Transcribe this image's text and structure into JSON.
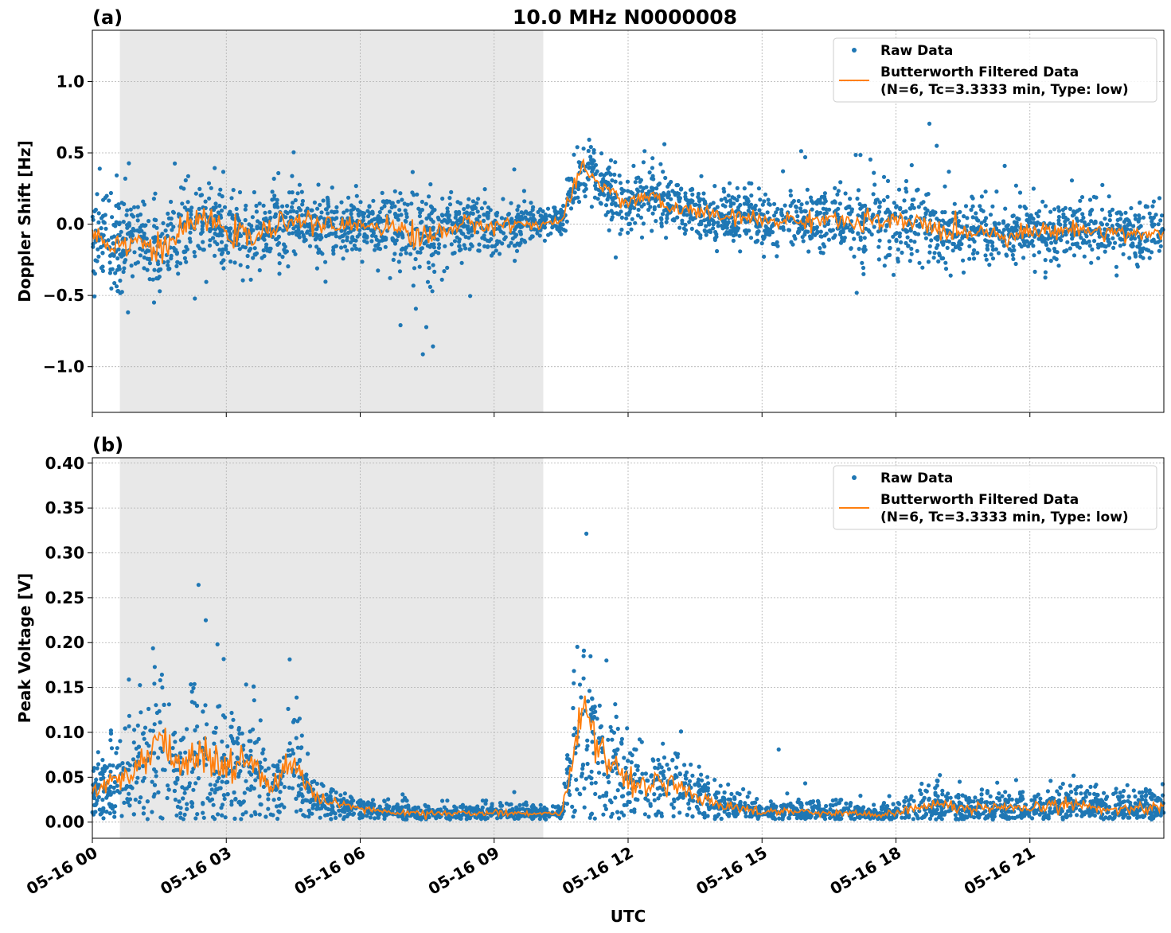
{
  "chart_data": {
    "type": "scatter",
    "title": "10.0 MHz N0000008",
    "xlabel": "UTC",
    "x_ticks": [
      "05-16 00",
      "05-16 03",
      "05-16 06",
      "05-16 09",
      "05-16 12",
      "05-16 15",
      "05-16 18",
      "05-16 21"
    ],
    "xlim": [
      "05-16 00:00",
      "05-17 00:00"
    ],
    "shaded_interval": [
      "05-16 00:37",
      "05-16 10:06"
    ],
    "colors": {
      "raw": "#1f77b4",
      "filtered": "#ff7f0e",
      "shade": "#e8e8e8"
    },
    "grid": true,
    "legend_placement": "top-right",
    "legend": [
      "Raw Data",
      "Butterworth Filtered Data\n(N=6, Tc=3.3333 min, Type: low)"
    ],
    "legend_line1": "Butterworth Filtered Data",
    "legend_line2": "(N=6, Tc=3.3333 min, Type: low)",
    "time": [
      "00:00",
      "00:30",
      "01:00",
      "01:30",
      "02:00",
      "02:30",
      "03:00",
      "03:30",
      "04:00",
      "04:30",
      "05:00",
      "05:30",
      "06:00",
      "06:30",
      "07:00",
      "07:30",
      "08:00",
      "08:30",
      "09:00",
      "09:30",
      "10:00",
      "10:30",
      "11:00",
      "11:30",
      "12:00",
      "12:30",
      "13:00",
      "13:30",
      "14:00",
      "14:30",
      "15:00",
      "15:30",
      "16:00",
      "16:30",
      "17:00",
      "17:30",
      "18:00",
      "18:30",
      "19:00",
      "19:30",
      "20:00",
      "20:30",
      "21:00",
      "21:30",
      "22:00",
      "22:30",
      "23:00",
      "23:30",
      "24:00"
    ],
    "panels": [
      {
        "label": "(a)",
        "ylabel": "Doppler Shift [Hz]",
        "ylim": [
          -1.32,
          1.36
        ],
        "y_ticks": [
          -1.0,
          -0.5,
          0.0,
          0.5,
          1.0
        ],
        "y_tick_labels": [
          "−1.0",
          "−0.5",
          "0.0",
          "0.5",
          "1.0"
        ],
        "filtered": [
          -0.05,
          -0.15,
          -0.1,
          -0.2,
          -0.05,
          0.05,
          -0.05,
          -0.1,
          -0.05,
          0.05,
          0.0,
          -0.02,
          0.0,
          -0.01,
          -0.05,
          -0.1,
          -0.02,
          0.0,
          -0.01,
          0.0,
          0.0,
          0.02,
          0.4,
          0.25,
          0.15,
          0.2,
          0.1,
          0.1,
          0.05,
          0.05,
          0.02,
          0.03,
          0.02,
          0.05,
          0.0,
          0.02,
          0.0,
          0.02,
          -0.05,
          -0.05,
          -0.05,
          -0.08,
          -0.05,
          -0.05,
          -0.03,
          -0.05,
          -0.05,
          -0.08,
          -0.05
        ],
        "raw_spread": [
          0.14,
          0.15,
          0.15,
          0.16,
          0.15,
          0.13,
          0.14,
          0.16,
          0.15,
          0.12,
          0.11,
          0.1,
          0.1,
          0.11,
          0.18,
          0.16,
          0.12,
          0.1,
          0.1,
          0.08,
          0.05,
          0.06,
          0.12,
          0.1,
          0.1,
          0.1,
          0.09,
          0.09,
          0.09,
          0.1,
          0.1,
          0.11,
          0.1,
          0.1,
          0.12,
          0.15,
          0.13,
          0.12,
          0.12,
          0.11,
          0.1,
          0.1,
          0.1,
          0.09,
          0.09,
          0.09,
          0.09,
          0.1,
          0.1
        ]
      },
      {
        "label": "(b)",
        "ylabel": "Peak Voltage [V]",
        "ylim": [
          -0.018,
          0.406
        ],
        "y_ticks": [
          0.0,
          0.05,
          0.1,
          0.15,
          0.2,
          0.25,
          0.3,
          0.35,
          0.4
        ],
        "y_tick_labels": [
          "0.00",
          "0.05",
          "0.10",
          "0.15",
          "0.20",
          "0.25",
          "0.30",
          "0.35",
          "0.40"
        ],
        "filtered": [
          0.03,
          0.05,
          0.06,
          0.1,
          0.06,
          0.08,
          0.06,
          0.07,
          0.035,
          0.07,
          0.025,
          0.02,
          0.015,
          0.012,
          0.01,
          0.01,
          0.01,
          0.01,
          0.01,
          0.01,
          0.01,
          0.01,
          0.12,
          0.07,
          0.05,
          0.04,
          0.04,
          0.03,
          0.02,
          0.015,
          0.012,
          0.012,
          0.012,
          0.01,
          0.01,
          0.008,
          0.01,
          0.018,
          0.02,
          0.015,
          0.015,
          0.015,
          0.013,
          0.02,
          0.02,
          0.015,
          0.015,
          0.015,
          0.02
        ],
        "raw_spread": [
          0.015,
          0.025,
          0.03,
          0.05,
          0.035,
          0.045,
          0.035,
          0.035,
          0.02,
          0.035,
          0.012,
          0.008,
          0.006,
          0.005,
          0.005,
          0.005,
          0.005,
          0.005,
          0.005,
          0.005,
          0.004,
          0.004,
          0.06,
          0.035,
          0.025,
          0.02,
          0.02,
          0.015,
          0.01,
          0.008,
          0.007,
          0.007,
          0.007,
          0.006,
          0.006,
          0.005,
          0.006,
          0.012,
          0.014,
          0.01,
          0.01,
          0.01,
          0.009,
          0.014,
          0.013,
          0.01,
          0.01,
          0.01,
          0.012
        ]
      }
    ]
  }
}
